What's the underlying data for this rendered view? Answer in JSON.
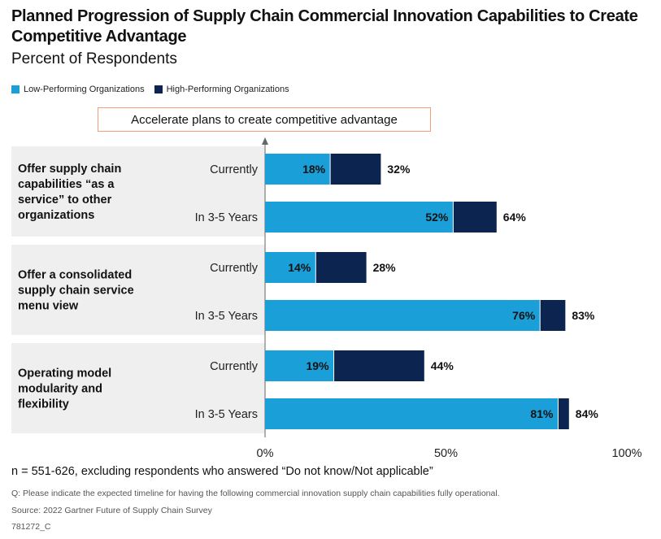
{
  "title": "Planned Progression of Supply Chain Commercial Innovation Capabilities to Create Competitive Advantage",
  "subtitle": "Percent of Respondents",
  "legend": [
    {
      "label": "Low-Performing Organizations",
      "color": "#1a9fd8"
    },
    {
      "label": "High-Performing Organizations",
      "color": "#0c2450"
    }
  ],
  "callout": "Accelerate plans to create competitive advantage",
  "chart_data": {
    "type": "bar",
    "orientation": "horizontal",
    "xlim": [
      0,
      100
    ],
    "x_ticks": [
      "0%",
      "50%",
      "100%"
    ],
    "groups": [
      {
        "label": "Offer supply chain capabilities “as a service” to other organizations",
        "rows": [
          {
            "label": "Currently",
            "low": 18,
            "high": 32,
            "low_label": "18%",
            "high_label": "32%"
          },
          {
            "label": "In 3-5 Years",
            "low": 52,
            "high": 64,
            "low_label": "52%",
            "high_label": "64%"
          }
        ]
      },
      {
        "label": "Offer a consolidated supply chain service menu view",
        "rows": [
          {
            "label": "Currently",
            "low": 14,
            "high": 28,
            "low_label": "14%",
            "high_label": "28%"
          },
          {
            "label": "In 3-5 Years",
            "low": 76,
            "high": 83,
            "low_label": "76%",
            "high_label": "83%"
          }
        ]
      },
      {
        "label": "Operating model modularity and flexibility",
        "rows": [
          {
            "label": "Currently",
            "low": 19,
            "high": 44,
            "low_label": "19%",
            "high_label": "44%"
          },
          {
            "label": "In 3-5 Years",
            "low": 81,
            "high": 84,
            "low_label": "81%",
            "high_label": "84%"
          }
        ]
      }
    ]
  },
  "footnotes": {
    "n": "n = 551-626, excluding respondents who answered “Do not know/Not applicable”",
    "question": "Q: Please indicate the expected timeline for having the following commercial innovation supply chain capabilities fully operational.",
    "source": "Source: 2022 Gartner Future of Supply Chain Survey",
    "id": "781272_C"
  }
}
